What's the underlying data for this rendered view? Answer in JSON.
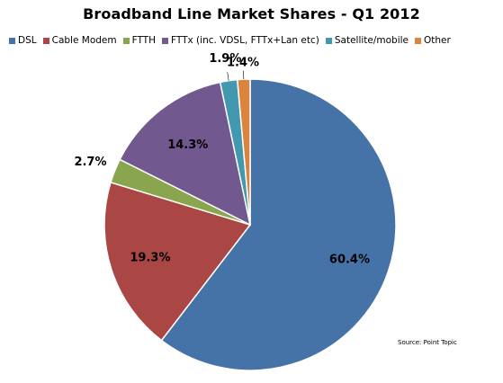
{
  "chart_data": {
    "type": "pie",
    "title": "Broadband Line Market Shares  - Q1 2012",
    "categories": [
      "DSL",
      "Cable Modem",
      "FTTH",
      "FTTx (inc. VDSL, FTTx+Lan etc)",
      "Satellite/mobile",
      "Other"
    ],
    "values": [
      60.4,
      19.3,
      2.7,
      14.3,
      1.9,
      1.4
    ],
    "labels": [
      "60.4%",
      "19.3%",
      "2.7%",
      "14.3%",
      "1.9%",
      "1.4%"
    ],
    "colors": [
      "#4572A7",
      "#AA4643",
      "#89A54E",
      "#71588F",
      "#4198AF",
      "#DB843D"
    ],
    "legend_position": "top",
    "source_note": "Source: Point Topic"
  }
}
